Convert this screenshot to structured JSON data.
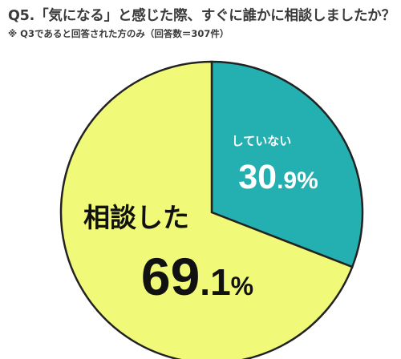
{
  "header": {
    "title": "Q5.「気になる」と感じた際、すぐに誰かに相談しましたか？",
    "subtitle": "※ Q3であると回答された方のみ（回答数＝307件）"
  },
  "colors": {
    "slice_consulted": "#f0fa78",
    "slice_not_consulted": "#24b0b0",
    "outline": "#222222",
    "label_dark": "#111111",
    "label_light": "#ffffff"
  },
  "chart_data": {
    "type": "pie",
    "title": "Q5.「気になる」と感じた際、すぐに誰かに相談しましたか？",
    "slices": [
      {
        "label": "していない",
        "value": 30.9,
        "value_int": "30",
        "value_dec": ".9",
        "unit": "%",
        "color": "#24b0b0",
        "text_color": "#ffffff"
      },
      {
        "label": "相談した",
        "value": 69.1,
        "value_int": "69",
        "value_dec": ".1",
        "unit": "%",
        "color": "#f0fa78",
        "text_color": "#111111"
      }
    ],
    "start_angle": "12 o'clock",
    "direction": "clockwise"
  }
}
